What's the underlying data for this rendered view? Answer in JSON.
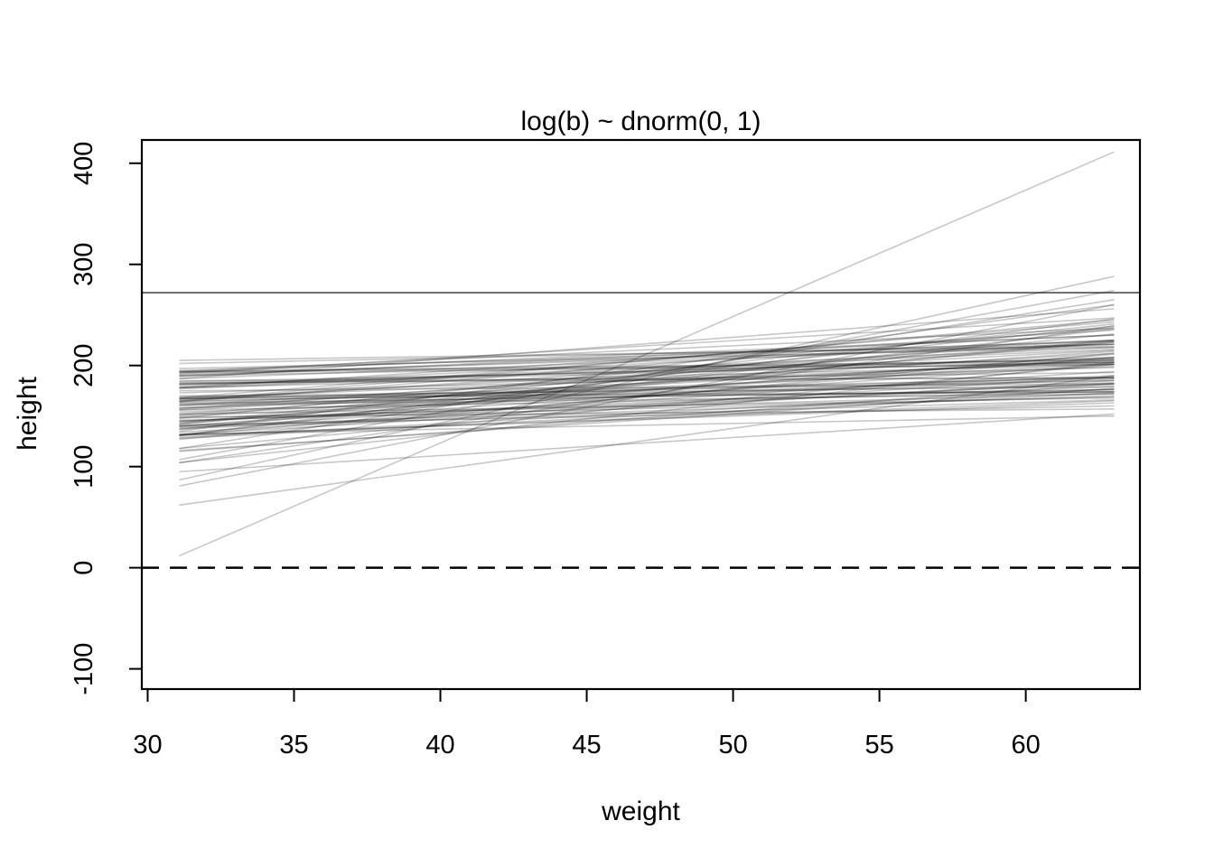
{
  "chart_data": {
    "type": "line",
    "title": "log(b) ~ dnorm(0, 1)",
    "xlabel": "weight",
    "ylabel": "height",
    "xlim": [
      29.8,
      63.9
    ],
    "ylim": [
      -120,
      423
    ],
    "x_ticks": [
      30,
      35,
      40,
      45,
      50,
      55,
      60
    ],
    "y_ticks": [
      -100,
      0,
      100,
      200,
      300,
      400
    ],
    "grid": false,
    "legend": null,
    "reference_lines": [
      {
        "y": 0,
        "style": "dashed"
      },
      {
        "y": 272,
        "style": "solid"
      }
    ],
    "sim_lines": {
      "n": 100,
      "x_start": 31.1,
      "x_end": 63.0,
      "y_endpoints": [
        [
          158,
          187
        ],
        [
          161,
          212
        ],
        [
          152,
          168
        ],
        [
          164,
          237
        ],
        [
          175,
          182
        ],
        [
          190,
          225
        ],
        [
          104,
          203
        ],
        [
          178,
          201
        ],
        [
          140,
          201
        ],
        [
          194,
          205
        ],
        [
          118,
          201
        ],
        [
          158,
          199
        ],
        [
          202,
          221
        ],
        [
          104,
          239
        ],
        [
          183,
          188
        ],
        [
          144,
          208
        ],
        [
          181,
          208
        ],
        [
          129,
          177
        ],
        [
          131,
          246
        ],
        [
          162,
          176
        ],
        [
          187,
          221
        ],
        [
          148,
          172
        ],
        [
          148,
          241
        ],
        [
          170,
          179
        ],
        [
          192,
          247
        ],
        [
          131,
          163
        ],
        [
          107,
          274
        ],
        [
          156,
          174
        ],
        [
          178,
          218
        ],
        [
          140,
          211
        ],
        [
          185,
          188
        ],
        [
          137,
          183
        ],
        [
          197,
          218
        ],
        [
          131,
          236
        ],
        [
          95,
          152
        ],
        [
          165,
          224
        ],
        [
          163,
          176
        ],
        [
          165,
          245
        ],
        [
          145,
          182
        ],
        [
          173,
          198
        ],
        [
          194,
          237
        ],
        [
          149,
          157
        ],
        [
          152,
          214
        ],
        [
          87,
          288
        ],
        [
          190,
          206
        ],
        [
          151,
          202
        ],
        [
          115,
          182
        ],
        [
          195,
          224
        ],
        [
          145,
          179
        ],
        [
          182,
          193
        ],
        [
          137,
          225
        ],
        [
          184,
          203
        ],
        [
          128,
          173
        ],
        [
          178,
          235
        ],
        [
          167,
          174
        ],
        [
          118,
          265
        ],
        [
          146,
          169
        ],
        [
          177,
          216
        ],
        [
          131,
          208
        ],
        [
          205,
          219
        ],
        [
          156,
          206
        ],
        [
          139,
          166
        ],
        [
          135,
          260
        ],
        [
          154,
          186
        ],
        [
          194,
          203
        ],
        [
          138,
          194
        ],
        [
          157,
          223
        ],
        [
          132,
          150
        ],
        [
          189,
          230
        ],
        [
          164,
          188
        ],
        [
          81,
          260
        ],
        [
          168,
          203
        ],
        [
          161,
          172
        ],
        [
          168,
          243
        ],
        [
          140,
          170
        ],
        [
          167,
          215
        ],
        [
          167,
          188
        ],
        [
          116,
          177
        ],
        [
          193,
          201
        ],
        [
          127,
          212
        ],
        [
          193,
          230
        ],
        [
          165,
          181
        ],
        [
          143,
          239
        ],
        [
          132,
          185
        ],
        [
          182,
          207
        ],
        [
          150,
          190
        ],
        [
          187,
          256
        ],
        [
          141,
          160
        ],
        [
          160,
          205
        ],
        [
          169,
          174
        ],
        [
          12,
          411
        ],
        [
          134,
          189
        ],
        [
          191,
          221
        ],
        [
          142,
          223
        ],
        [
          131,
          165
        ],
        [
          181,
          204
        ],
        [
          62,
          190
        ],
        [
          179,
          225
        ],
        [
          167,
          185
        ],
        [
          142,
          231
        ]
      ]
    },
    "colors": {
      "background": "#ffffff",
      "axis": "#000000",
      "sim_line": "#000000",
      "sim_line_opacity": 0.22,
      "solid_ref_line": "#2f2f2f",
      "dashed_ref_line": "#000000"
    }
  }
}
